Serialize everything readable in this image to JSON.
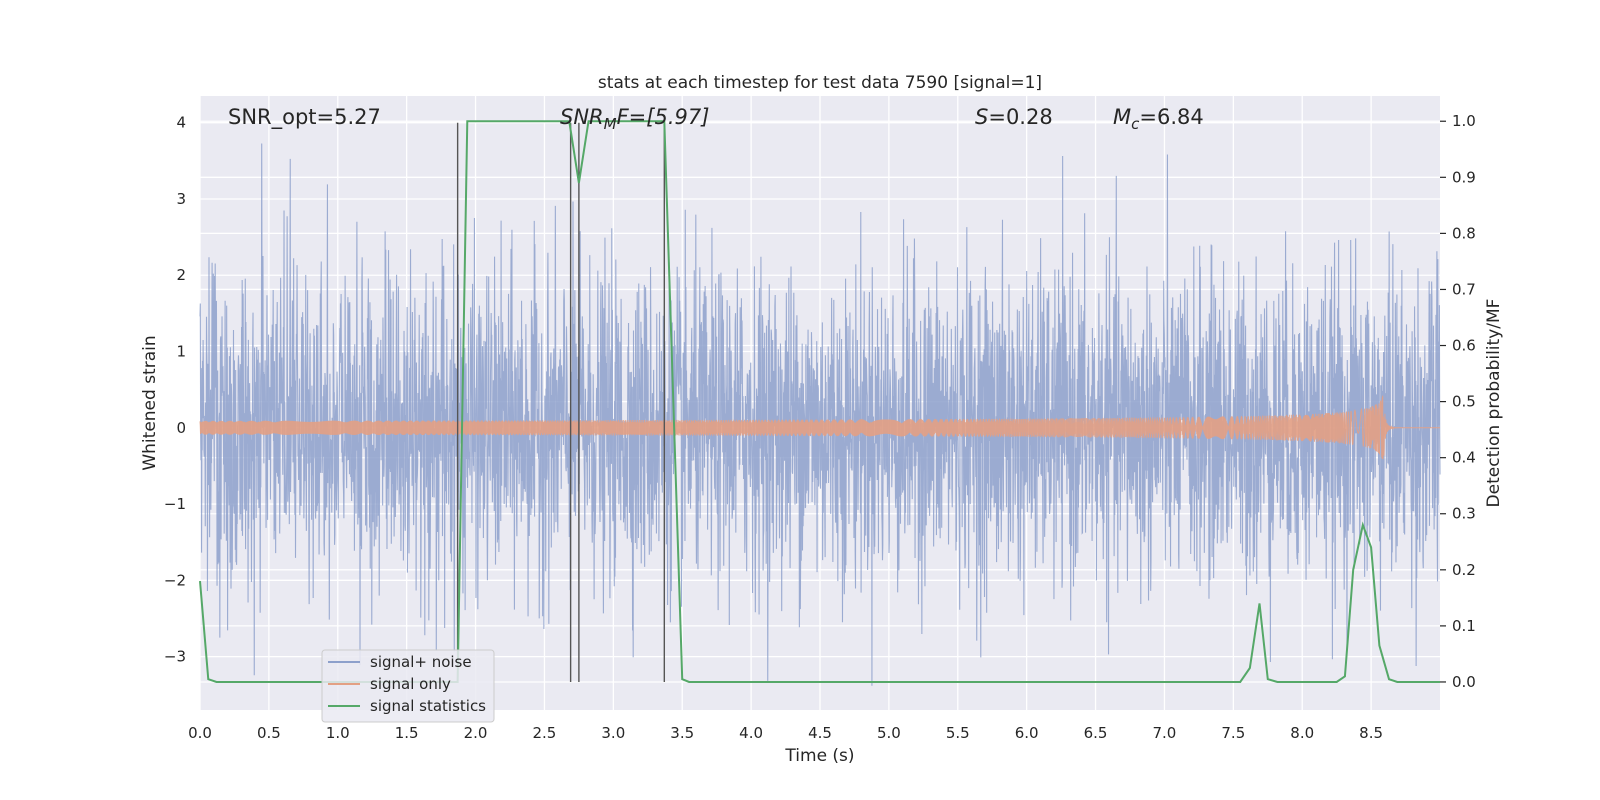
{
  "chart_data": {
    "type": "line",
    "title": "stats at each timestep for test data 7590 [signal=1]",
    "xlabel": "Time (s)",
    "ylabel": "Whitened strain",
    "ylabel_right": "Detection probability/MF",
    "xlim": [
      0,
      9.0
    ],
    "ylim": [
      -3.7,
      4.35
    ],
    "ylim_right": [
      -0.05,
      1.045
    ],
    "x_ticks": [
      0.0,
      0.5,
      1.0,
      1.5,
      2.0,
      2.5,
      3.0,
      3.5,
      4.0,
      4.5,
      5.0,
      5.5,
      6.0,
      6.5,
      7.0,
      7.5,
      8.0,
      8.5
    ],
    "x_tick_labels": [
      "0.0",
      "0.5",
      "1.0",
      "1.5",
      "2.0",
      "2.5",
      "3.0",
      "3.5",
      "4.0",
      "4.5",
      "5.0",
      "5.5",
      "6.0",
      "6.5",
      "7.0",
      "7.5",
      "8.0",
      "8.5"
    ],
    "y_ticks": [
      -3,
      -2,
      -1,
      0,
      1,
      2,
      3,
      4
    ],
    "y_tick_labels": [
      "−3",
      "−2",
      "−1",
      "0",
      "1",
      "2",
      "3",
      "4"
    ],
    "y_ticks_right": [
      0.0,
      0.1,
      0.2,
      0.3,
      0.4,
      0.5,
      0.6,
      0.7,
      0.8,
      0.9,
      1.0
    ],
    "y_tick_labels_right": [
      "0.0",
      "0.1",
      "0.2",
      "0.3",
      "0.4",
      "0.5",
      "0.6",
      "0.7",
      "0.8",
      "0.9",
      "1.0"
    ],
    "grid": true,
    "legend_position": "lower-left",
    "annotations": {
      "snr_opt": "SNR_opt=5.27",
      "snr_mf_sym": "SNR",
      "snr_mf_sub": "M",
      "snr_mf_rest": "F=[5.97]",
      "s_sym": "S",
      "s_rest": "=0.28",
      "mc_sym": "M",
      "mc_sub": "c",
      "mc_rest": "=6.84"
    },
    "vertical_markers": [
      1.87,
      2.69,
      2.75,
      3.37
    ],
    "series": [
      {
        "name": "signal+ noise",
        "color": "#8da0cb",
        "description_kind": "noise",
        "sigma": 1.0
      },
      {
        "name": "signal only",
        "color": "#e3a084",
        "description_kind": "chirp",
        "merger_time": 8.6,
        "peak_amplitude": 0.65
      },
      {
        "name": "signal statistics",
        "color": "#55a868",
        "axis": "right",
        "x": [
          0.0,
          0.06,
          0.12,
          1.87,
          1.94,
          2.0,
          2.2,
          2.5,
          2.68,
          2.75,
          2.82,
          2.9,
          3.2,
          3.37,
          3.5,
          3.55,
          4.0,
          5.0,
          6.0,
          7.0,
          7.55,
          7.62,
          7.69,
          7.75,
          7.82,
          8.0,
          8.25,
          8.31,
          8.37,
          8.44,
          8.5,
          8.56,
          8.63,
          8.69,
          9.0
        ],
        "y": [
          0.18,
          0.005,
          0.0,
          0.0,
          1.0,
          1.0,
          1.0,
          1.0,
          1.0,
          0.89,
          1.0,
          1.0,
          1.0,
          1.0,
          0.005,
          0.0,
          0.0,
          0.0,
          0.0,
          0.0,
          0.0,
          0.025,
          0.14,
          0.005,
          0.0,
          0.0,
          0.0,
          0.01,
          0.2,
          0.28,
          0.24,
          0.065,
          0.005,
          0.0,
          0.0
        ]
      }
    ]
  }
}
